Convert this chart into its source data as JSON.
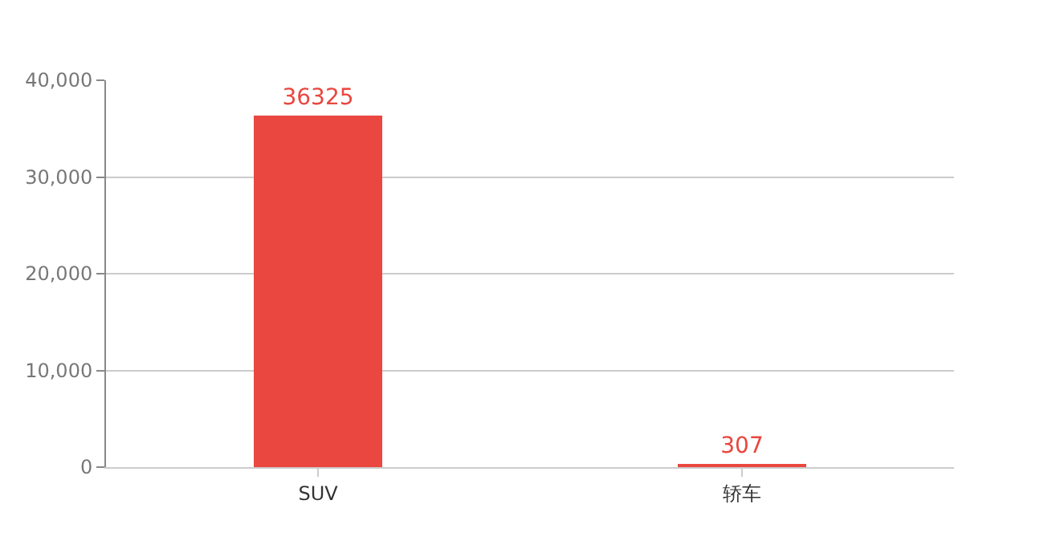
{
  "chart_data": {
    "type": "bar",
    "categories": [
      "SUV",
      "轿车"
    ],
    "values": [
      36325,
      307
    ],
    "color": "#e9473f",
    "ylim": [
      0,
      40000
    ],
    "yticks": [
      {
        "value": 0,
        "label": "0"
      },
      {
        "value": 10000,
        "label": "10,000"
      },
      {
        "value": 20000,
        "label": "20,000"
      },
      {
        "value": 30000,
        "label": "30,000"
      },
      {
        "value": 40000,
        "label": "40,000"
      }
    ],
    "grid": "y",
    "data_labels": true
  }
}
